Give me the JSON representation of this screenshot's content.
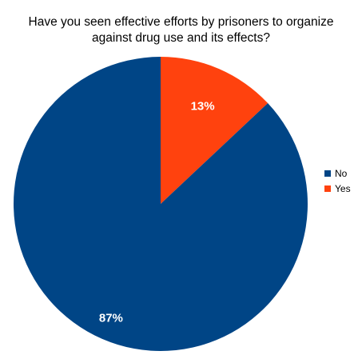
{
  "chart_data": {
    "type": "pie",
    "title": "Have you seen effective efforts by prisoners to organize against drug use and its effects?",
    "title_lines": [
      "Have you seen effective efforts by prisoners to organize",
      "against drug use and its effects?"
    ],
    "slices": [
      {
        "label": "No",
        "value": 87,
        "display": "87%",
        "color": "#004586"
      },
      {
        "label": "Yes",
        "value": 13,
        "display": "13%",
        "color": "#ff420e"
      }
    ],
    "legend_position": "right"
  }
}
